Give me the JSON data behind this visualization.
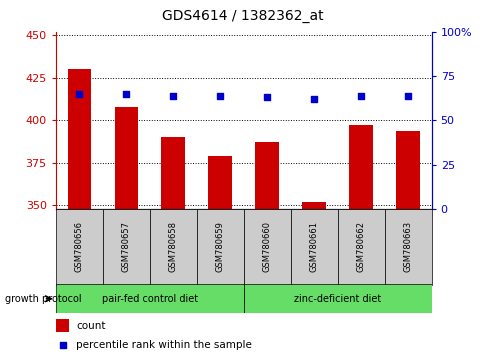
{
  "title": "GDS4614 / 1382362_at",
  "samples": [
    "GSM780656",
    "GSM780657",
    "GSM780658",
    "GSM780659",
    "GSM780660",
    "GSM780661",
    "GSM780662",
    "GSM780663"
  ],
  "counts": [
    430,
    408,
    390,
    379,
    387,
    352,
    397,
    394
  ],
  "percentiles": [
    65,
    65,
    64,
    64,
    63,
    62,
    64,
    64
  ],
  "ylim_left": [
    348,
    452
  ],
  "ylim_right": [
    0,
    100
  ],
  "yticks_left": [
    350,
    375,
    400,
    425,
    450
  ],
  "yticks_right": [
    0,
    25,
    50,
    75,
    100
  ],
  "ytick_labels_right": [
    "0",
    "25",
    "50",
    "75",
    "100%"
  ],
  "bar_color": "#cc0000",
  "dot_color": "#0000cc",
  "group1_label": "pair-fed control diet",
  "group2_label": "zinc-deficient diet",
  "group1_indices": [
    0,
    1,
    2,
    3
  ],
  "group2_indices": [
    4,
    5,
    6,
    7
  ],
  "group_bg_color": "#66dd66",
  "sample_box_color": "#cccccc",
  "legend_count_label": "count",
  "legend_pct_label": "percentile rank within the sample",
  "growth_protocol_label": "growth protocol",
  "title_fontsize": 10,
  "tick_fontsize": 8,
  "legend_fontsize": 7.5
}
